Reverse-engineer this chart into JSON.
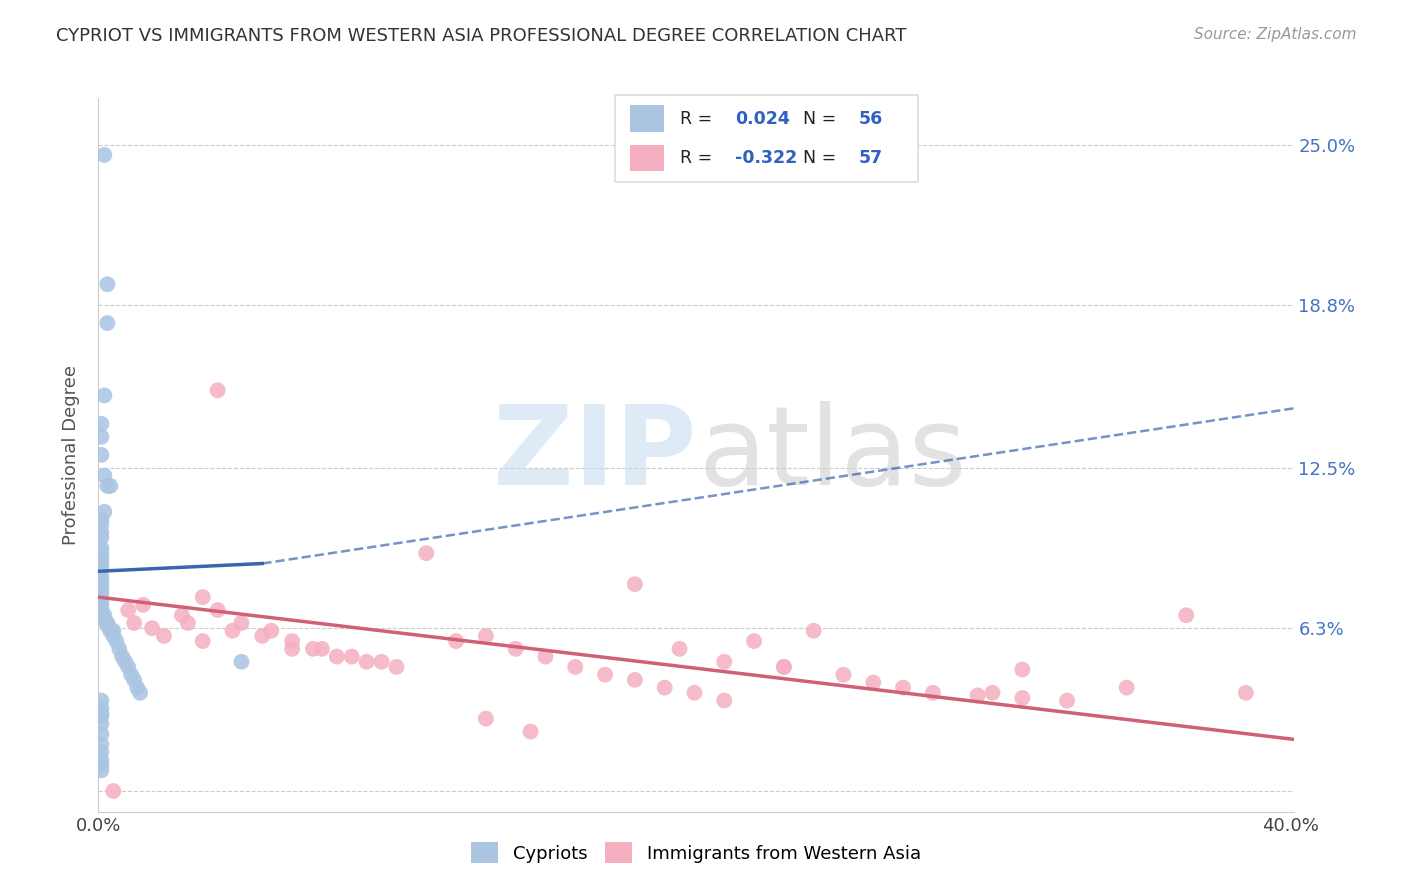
{
  "title": "CYPRIOT VS IMMIGRANTS FROM WESTERN ASIA PROFESSIONAL DEGREE CORRELATION CHART",
  "source": "Source: ZipAtlas.com",
  "ylabel": "Professional Degree",
  "xlim": [
    0,
    0.401
  ],
  "ylim": [
    -0.008,
    0.268
  ],
  "xticks": [
    0.0,
    0.1,
    0.2,
    0.3,
    0.4
  ],
  "xticklabels": [
    "0.0%",
    "",
    "",
    "",
    "40.0%"
  ],
  "ytick_positions": [
    0.0,
    0.063,
    0.125,
    0.188,
    0.25
  ],
  "ytick_labels": [
    "",
    "6.3%",
    "12.5%",
    "18.8%",
    "25.0%"
  ],
  "legend_r_blue": "0.024",
  "legend_n_blue": "56",
  "legend_r_pink": "-0.322",
  "legend_n_pink": "57",
  "blue_color": "#aac4e2",
  "pink_color": "#f5afc0",
  "trendline_blue_color": "#3a65b0",
  "trendline_pink_color": "#d06075",
  "blue_trend_x0": 0.0,
  "blue_trend_y0": 0.085,
  "blue_trend_x1": 0.055,
  "blue_trend_y1": 0.088,
  "blue_trend_dash_x0": 0.055,
  "blue_trend_dash_y0": 0.088,
  "blue_trend_dash_x1": 0.401,
  "blue_trend_dash_y1": 0.148,
  "pink_trend_x0": 0.0,
  "pink_trend_y0": 0.075,
  "pink_trend_x1": 0.401,
  "pink_trend_y1": 0.02,
  "blue_points_x": [
    0.002,
    0.003,
    0.003,
    0.002,
    0.001,
    0.001,
    0.001,
    0.002,
    0.003,
    0.004,
    0.002,
    0.001,
    0.001,
    0.001,
    0.001,
    0.001,
    0.001,
    0.001,
    0.001,
    0.001,
    0.001,
    0.001,
    0.001,
    0.001,
    0.001,
    0.001,
    0.001,
    0.001,
    0.002,
    0.002,
    0.003,
    0.003,
    0.004,
    0.005,
    0.005,
    0.006,
    0.007,
    0.008,
    0.009,
    0.01,
    0.011,
    0.012,
    0.013,
    0.014,
    0.001,
    0.001,
    0.001,
    0.001,
    0.001,
    0.001,
    0.001,
    0.001,
    0.001,
    0.001,
    0.048,
    0.001
  ],
  "blue_points_y": [
    0.246,
    0.196,
    0.181,
    0.153,
    0.142,
    0.137,
    0.13,
    0.122,
    0.118,
    0.118,
    0.108,
    0.105,
    0.103,
    0.1,
    0.098,
    0.094,
    0.092,
    0.09,
    0.088,
    0.086,
    0.083,
    0.081,
    0.079,
    0.077,
    0.075,
    0.073,
    0.071,
    0.069,
    0.068,
    0.066,
    0.065,
    0.064,
    0.062,
    0.062,
    0.06,
    0.058,
    0.055,
    0.052,
    0.05,
    0.048,
    0.045,
    0.043,
    0.04,
    0.038,
    0.035,
    0.032,
    0.029,
    0.026,
    0.022,
    0.018,
    0.015,
    0.012,
    0.01,
    0.008,
    0.05,
    0.03
  ],
  "pink_points_x": [
    0.04,
    0.01,
    0.012,
    0.015,
    0.018,
    0.022,
    0.028,
    0.035,
    0.04,
    0.048,
    0.058,
    0.065,
    0.072,
    0.08,
    0.09,
    0.1,
    0.11,
    0.12,
    0.13,
    0.14,
    0.15,
    0.16,
    0.17,
    0.18,
    0.19,
    0.2,
    0.21,
    0.22,
    0.23,
    0.24,
    0.25,
    0.26,
    0.27,
    0.28,
    0.295,
    0.31,
    0.325,
    0.345,
    0.365,
    0.385,
    0.03,
    0.035,
    0.045,
    0.055,
    0.065,
    0.075,
    0.085,
    0.095,
    0.18,
    0.21,
    0.23,
    0.3,
    0.31,
    0.195,
    0.13,
    0.145,
    0.005
  ],
  "pink_points_y": [
    0.155,
    0.07,
    0.065,
    0.072,
    0.063,
    0.06,
    0.068,
    0.075,
    0.07,
    0.065,
    0.062,
    0.058,
    0.055,
    0.052,
    0.05,
    0.048,
    0.092,
    0.058,
    0.06,
    0.055,
    0.052,
    0.048,
    0.045,
    0.043,
    0.04,
    0.038,
    0.035,
    0.058,
    0.048,
    0.062,
    0.045,
    0.042,
    0.04,
    0.038,
    0.037,
    0.036,
    0.035,
    0.04,
    0.068,
    0.038,
    0.065,
    0.058,
    0.062,
    0.06,
    0.055,
    0.055,
    0.052,
    0.05,
    0.08,
    0.05,
    0.048,
    0.038,
    0.047,
    0.055,
    0.028,
    0.023,
    0.0
  ]
}
